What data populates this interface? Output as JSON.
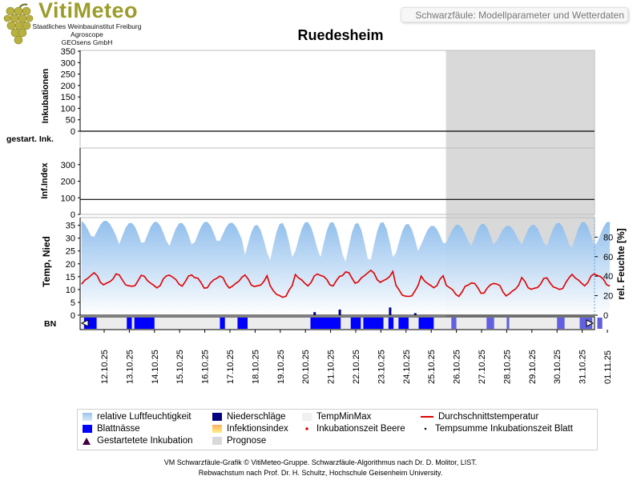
{
  "header": {
    "logo_text": "VitiMeteo",
    "org_lines": [
      "Staatliches Weinbauinstitut Freiburg",
      "Agroscope",
      "GEOsens GmbH"
    ],
    "subtitle": "Schwarzfäule: Modellparameter und Wetterdaten",
    "title": "Ruedesheim"
  },
  "colors": {
    "humidity": "#9cc4ec",
    "rain": "#000080",
    "leaf_wetness": "#0000ff",
    "temp_line": "#e00000",
    "forecast": "#d9d9d9"
  },
  "chart_data": [
    {
      "type": "line",
      "name": "inkubationen",
      "ylabel": "Inkubationen",
      "yticks": [
        0,
        50,
        100,
        150,
        200,
        250,
        300,
        350
      ],
      "ylim": [
        0,
        350
      ],
      "values": [
        0
      ]
    },
    {
      "type": "line",
      "name": "gestartete-inkubationen",
      "ylabel": "gestart. Ink.",
      "values": []
    },
    {
      "type": "line",
      "name": "infektionsindex",
      "ylabel": "Inf.Index",
      "yticks": [
        0,
        100,
        200,
        300
      ],
      "ylim": [
        0,
        400
      ],
      "reference_line": 90
    },
    {
      "type": "area",
      "name": "wetterdaten",
      "ylabel_left": "Temp, Nied",
      "ylabel_right": "rel. Feuchte [%]",
      "yticks_left": [
        0,
        5,
        10,
        15,
        20,
        25,
        30,
        35
      ],
      "yticks_right": [
        0,
        20,
        40,
        60,
        80
      ],
      "ylim_left": [
        0,
        38
      ],
      "ylim_right": [
        0,
        100
      ],
      "x": [
        "12.10.25",
        "13.10.25",
        "14.10.25",
        "15.10.25",
        "16.10.25",
        "17.10.25",
        "18.10.25",
        "19.10.25",
        "20.10.25",
        "21.10.25",
        "22.10.25",
        "23.10.25",
        "24.10.25",
        "25.10.25",
        "26.10.25",
        "27.10.25",
        "28.10.25",
        "29.10.25",
        "30.10.25",
        "31.10.25",
        "01.11.25"
      ],
      "forecast_from": "26.10.25",
      "temperature_daily": [
        14,
        13,
        13,
        14,
        13,
        13,
        13,
        9,
        14,
        14,
        15,
        15,
        9,
        13,
        10,
        11,
        10,
        12,
        12,
        14,
        14
      ],
      "humidity_daily_max": [
        97,
        95,
        96,
        95,
        96,
        95,
        93,
        95,
        96,
        96,
        95,
        96,
        94,
        92,
        93,
        94,
        92,
        93,
        95,
        96,
        96
      ],
      "humidity_daily_min": [
        78,
        70,
        72,
        68,
        72,
        74,
        58,
        52,
        62,
        55,
        50,
        52,
        60,
        70,
        72,
        68,
        74,
        70,
        68,
        66,
        72
      ],
      "precipitation": [
        {
          "date": "20.10.25",
          "value": 1.2
        },
        {
          "date": "21.10.25",
          "value": 2.2
        },
        {
          "date": "23.10.25",
          "value": 3.0
        },
        {
          "date": "24.10.25",
          "value": 0.8
        }
      ]
    },
    {
      "type": "bar",
      "name": "blattnaesse",
      "ylabel": "BN",
      "segments": [
        {
          "from": 0.0,
          "to": 0.5,
          "forecast": false
        },
        {
          "from": 1.7,
          "to": 1.9,
          "forecast": false
        },
        {
          "from": 2.0,
          "to": 2.8,
          "forecast": false
        },
        {
          "from": 5.4,
          "to": 5.6,
          "forecast": false
        },
        {
          "from": 6.1,
          "to": 6.5,
          "forecast": false
        },
        {
          "from": 9.0,
          "to": 10.2,
          "forecast": false
        },
        {
          "from": 10.6,
          "to": 11.0,
          "forecast": false
        },
        {
          "from": 11.1,
          "to": 11.9,
          "forecast": false
        },
        {
          "from": 12.1,
          "to": 12.3,
          "forecast": false
        },
        {
          "from": 12.5,
          "to": 12.9,
          "forecast": false
        },
        {
          "from": 13.3,
          "to": 13.9,
          "forecast": false
        },
        {
          "from": 14.6,
          "to": 14.8,
          "forecast": true
        },
        {
          "from": 16.0,
          "to": 16.3,
          "forecast": true
        },
        {
          "from": 16.8,
          "to": 16.9,
          "forecast": true
        },
        {
          "from": 18.8,
          "to": 19.1,
          "forecast": true
        },
        {
          "from": 19.7,
          "to": 20.2,
          "forecast": true
        },
        {
          "from": 20.4,
          "to": 20.6,
          "forecast": true
        }
      ]
    }
  ],
  "legend": {
    "items": [
      {
        "label": "relative Luftfeuchtigkeit",
        "swatch": "humidity"
      },
      {
        "label": "Niederschläge",
        "swatch": "rain"
      },
      {
        "label": "TempMinMax",
        "swatch": "tempminmax"
      },
      {
        "label": "Durchschnittstemperatur",
        "swatch": "templine"
      },
      {
        "label": "Blattnässe",
        "swatch": "leaf"
      },
      {
        "label": "Infektionsindex",
        "swatch": "infindex"
      },
      {
        "label": "Inkubationszeit Beere",
        "swatch": "reddot"
      },
      {
        "label": "Tempsumme Inkubationszeit Blatt",
        "swatch": "blackdot"
      },
      {
        "label": "Gestartetete Inkubation",
        "swatch": "triangle"
      },
      {
        "label": "Prognose",
        "swatch": "prognose"
      }
    ]
  },
  "footer": {
    "line1": "VM Schwarzfäule-Grafik © VitiMeteo-Gruppe. Schwarzfäule-Algorithmus nach Dr. D. Molitor, LIST.",
    "line2": "Rebwachstum nach Prof. Dr. H. Schultz, Hochschule Geisenheim University."
  }
}
